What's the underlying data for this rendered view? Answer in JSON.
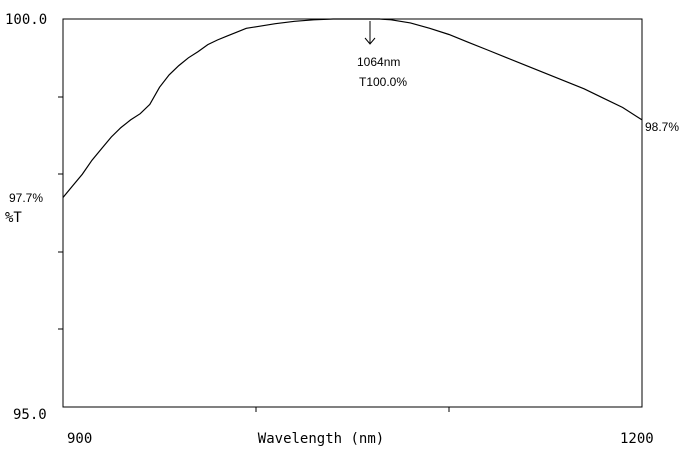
{
  "chart_data": {
    "type": "line",
    "xlabel": "Wavelength (nm)",
    "ylabel": "%T",
    "xlim": [
      900,
      1200
    ],
    "ylim": [
      95.0,
      100.0
    ],
    "x_tick_labels": [
      "900",
      "1200"
    ],
    "y_tick_labels": [
      "100.0",
      "95.0"
    ],
    "grid": false,
    "series": [
      {
        "x": [
          900,
          905,
          910,
          915,
          920,
          925,
          930,
          935,
          940,
          945,
          950,
          955,
          960,
          965,
          970,
          975,
          980,
          985,
          990,
          995,
          1000,
          1010,
          1020,
          1030,
          1040,
          1050,
          1055,
          1060,
          1064,
          1070,
          1080,
          1090,
          1100,
          1110,
          1120,
          1130,
          1140,
          1150,
          1160,
          1170,
          1180,
          1190,
          1200
        ],
        "values": [
          97.7,
          97.85,
          98.0,
          98.18,
          98.33,
          98.48,
          98.6,
          98.7,
          98.78,
          98.9,
          99.12,
          99.28,
          99.4,
          99.5,
          99.58,
          99.67,
          99.73,
          99.78,
          99.83,
          99.88,
          99.9,
          99.94,
          99.97,
          99.99,
          100.0,
          100.0,
          100.0,
          100.0,
          100.0,
          99.99,
          99.95,
          99.88,
          99.8,
          99.7,
          99.6,
          99.5,
          99.4,
          99.3,
          99.2,
          99.1,
          98.98,
          98.86,
          98.7
        ]
      }
    ],
    "annotations": {
      "peak_wavelength": "1064nm",
      "peak_transmission": "T100.0%",
      "start_value": "97.7%",
      "end_value": "98.7%"
    }
  }
}
